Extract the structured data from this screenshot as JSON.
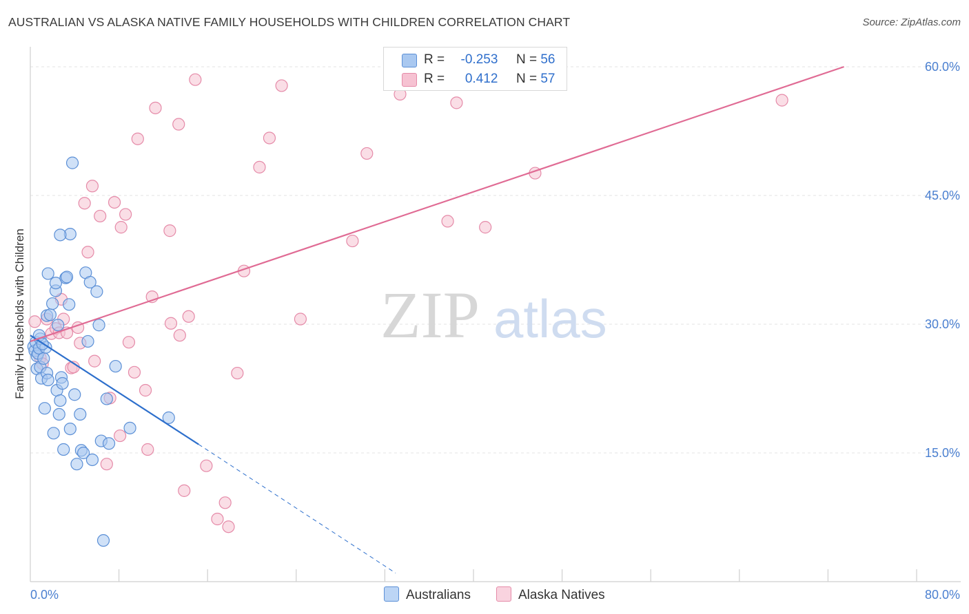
{
  "title": "AUSTRALIAN VS ALASKA NATIVE FAMILY HOUSEHOLDS WITH CHILDREN CORRELATION CHART",
  "source": "Source: ZipAtlas.com",
  "watermark": {
    "zip": "ZIP",
    "atlas": "atlas"
  },
  "legend": {
    "r_label": "R =",
    "n_label": "N =",
    "rows": [
      {
        "r": "-0.253",
        "n": "56"
      },
      {
        "r": "0.412",
        "n": "57"
      }
    ]
  },
  "colors": {
    "blue_fill": "#a9c8f0",
    "blue_stroke": "#5b8fd6",
    "blue_line": "#2d6fcc",
    "pink_fill": "#f6c2d2",
    "pink_stroke": "#e58aa8",
    "pink_line": "#e06b94",
    "tick_text": "#4a7fd0"
  },
  "chart_data": {
    "type": "scatter",
    "title": "AUSTRALIAN VS ALASKA NATIVE FAMILY HOUSEHOLDS WITH CHILDREN CORRELATION CHART",
    "xlabel": "",
    "ylabel": "Family Households with Children",
    "xlim": [
      0,
      80
    ],
    "ylim": [
      0,
      60
    ],
    "x_tick_labels": [
      "0.0%",
      "80.0%"
    ],
    "y_ticks": [
      15,
      30,
      45,
      60
    ],
    "y_tick_labels": [
      "15.0%",
      "30.0%",
      "45.0%",
      "60.0%"
    ],
    "series": [
      {
        "name": "Australians",
        "r": -0.253,
        "n": 56,
        "trend": {
          "x0": 0,
          "y0": 28.7,
          "x1": 15.2,
          "y1": 16.0,
          "dash_to_x": 33,
          "dash_to_y": 1.0
        },
        "points": [
          [
            0.3,
            27.4
          ],
          [
            0.4,
            26.9
          ],
          [
            0.5,
            27.9
          ],
          [
            0.6,
            26.3
          ],
          [
            0.7,
            26.6
          ],
          [
            0.8,
            27.2
          ],
          [
            0.9,
            28.3
          ],
          [
            0.6,
            24.8
          ],
          [
            0.9,
            25.0
          ],
          [
            1.0,
            23.7
          ],
          [
            1.2,
            26.0
          ],
          [
            1.4,
            27.3
          ],
          [
            1.5,
            24.3
          ],
          [
            1.6,
            23.5
          ],
          [
            1.3,
            20.2
          ],
          [
            1.5,
            31.0
          ],
          [
            1.6,
            35.9
          ],
          [
            1.8,
            31.1
          ],
          [
            2.0,
            32.4
          ],
          [
            2.1,
            17.3
          ],
          [
            2.3,
            33.9
          ],
          [
            2.3,
            34.8
          ],
          [
            2.4,
            22.3
          ],
          [
            2.5,
            29.9
          ],
          [
            2.7,
            21.1
          ],
          [
            2.6,
            19.5
          ],
          [
            2.8,
            23.8
          ],
          [
            2.9,
            23.1
          ],
          [
            3.0,
            15.4
          ],
          [
            3.2,
            35.4
          ],
          [
            3.3,
            35.5
          ],
          [
            3.5,
            32.3
          ],
          [
            3.6,
            17.8
          ],
          [
            4.0,
            21.8
          ],
          [
            4.2,
            13.7
          ],
          [
            4.5,
            19.5
          ],
          [
            4.6,
            15.3
          ],
          [
            4.8,
            15.0
          ],
          [
            5.0,
            36.0
          ],
          [
            5.2,
            28.0
          ],
          [
            5.4,
            34.9
          ],
          [
            5.6,
            14.2
          ],
          [
            6.0,
            33.8
          ],
          [
            6.2,
            29.9
          ],
          [
            6.4,
            16.4
          ],
          [
            6.6,
            4.8
          ],
          [
            6.9,
            21.3
          ],
          [
            7.1,
            16.1
          ],
          [
            3.6,
            40.5
          ],
          [
            2.7,
            40.4
          ],
          [
            3.8,
            48.8
          ],
          [
            7.7,
            25.1
          ],
          [
            9.0,
            17.9
          ],
          [
            12.5,
            19.1
          ],
          [
            0.8,
            28.7
          ],
          [
            1.1,
            27.7
          ]
        ]
      },
      {
        "name": "Alaska Natives",
        "r": 0.412,
        "n": 57,
        "trend": {
          "x0": 0,
          "y0": 28.0,
          "x1": 73.5,
          "y1": 60.0
        },
        "points": [
          [
            0.4,
            30.3
          ],
          [
            0.9,
            26.1
          ],
          [
            1.1,
            25.4
          ],
          [
            1.5,
            30.6
          ],
          [
            1.9,
            28.9
          ],
          [
            2.3,
            29.5
          ],
          [
            2.6,
            29.0
          ],
          [
            2.8,
            32.9
          ],
          [
            3.0,
            30.6
          ],
          [
            3.3,
            29.0
          ],
          [
            3.7,
            24.9
          ],
          [
            3.9,
            25.0
          ],
          [
            4.3,
            29.6
          ],
          [
            4.5,
            27.8
          ],
          [
            4.9,
            44.1
          ],
          [
            5.2,
            38.4
          ],
          [
            5.6,
            46.1
          ],
          [
            5.8,
            25.7
          ],
          [
            6.3,
            42.6
          ],
          [
            7.2,
            21.4
          ],
          [
            7.6,
            44.2
          ],
          [
            8.1,
            17.0
          ],
          [
            8.2,
            41.3
          ],
          [
            8.6,
            42.8
          ],
          [
            8.9,
            27.9
          ],
          [
            9.4,
            24.4
          ],
          [
            9.7,
            51.6
          ],
          [
            10.4,
            22.3
          ],
          [
            10.6,
            15.4
          ],
          [
            11.0,
            33.2
          ],
          [
            11.3,
            55.2
          ],
          [
            12.7,
            30.1
          ],
          [
            13.4,
            53.3
          ],
          [
            13.5,
            28.7
          ],
          [
            13.9,
            10.6
          ],
          [
            14.3,
            30.9
          ],
          [
            14.9,
            58.5
          ],
          [
            15.9,
            13.5
          ],
          [
            16.9,
            7.3
          ],
          [
            17.6,
            9.2
          ],
          [
            18.7,
            24.3
          ],
          [
            19.3,
            36.2
          ],
          [
            20.7,
            48.3
          ],
          [
            21.6,
            51.7
          ],
          [
            22.7,
            57.8
          ],
          [
            24.4,
            30.6
          ],
          [
            29.1,
            39.7
          ],
          [
            30.4,
            49.9
          ],
          [
            33.4,
            56.8
          ],
          [
            37.7,
            42.0
          ],
          [
            38.5,
            55.8
          ],
          [
            41.1,
            41.3
          ],
          [
            45.6,
            47.6
          ],
          [
            67.9,
            56.1
          ],
          [
            17.9,
            6.4
          ],
          [
            6.9,
            13.7
          ],
          [
            12.6,
            40.9
          ]
        ]
      }
    ]
  }
}
